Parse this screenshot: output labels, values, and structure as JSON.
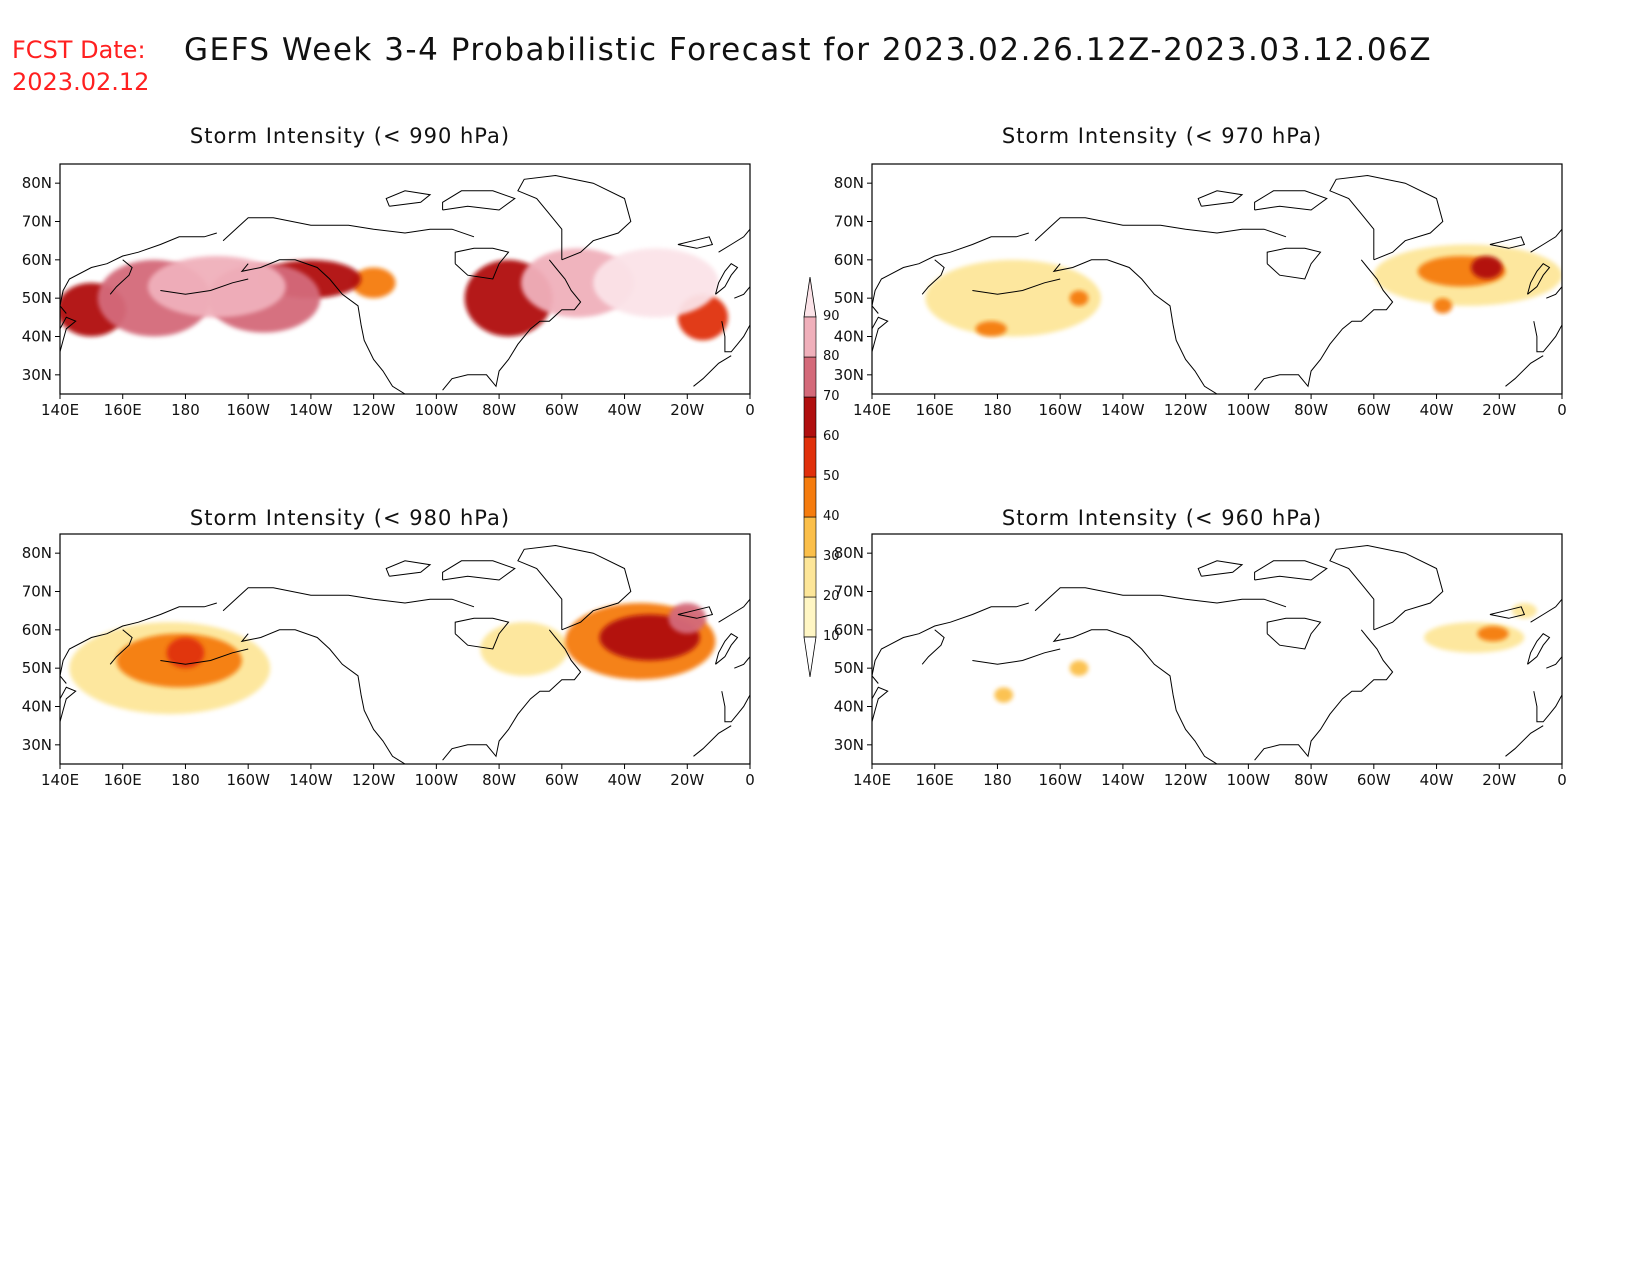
{
  "header": {
    "fcst_label": "FCST Date:",
    "fcst_date": "2023.02.12",
    "title": "GEFS Week 3-4 Probabilistic Forecast for 2023.02.26.12Z-2023.03.12.06Z"
  },
  "map_axes": {
    "lat_labels": [
      "80N",
      "70N",
      "60N",
      "50N",
      "40N",
      "30N"
    ],
    "lat_values": [
      80,
      70,
      60,
      50,
      40,
      30
    ],
    "lon_labels": [
      "140E",
      "160E",
      "180",
      "160W",
      "140W",
      "120W",
      "100W",
      "80W",
      "60W",
      "40W",
      "20W",
      "0"
    ],
    "lon_values": [
      140,
      160,
      180,
      200,
      220,
      240,
      260,
      280,
      300,
      320,
      340,
      360
    ],
    "lon_range": [
      140,
      360
    ],
    "lat_range": [
      25,
      85
    ]
  },
  "colorbar": {
    "levels": [
      "10",
      "20",
      "30",
      "40",
      "50",
      "60",
      "70",
      "80",
      "90"
    ],
    "colors": [
      "#fff6c4",
      "#fde699",
      "#fbbf4a",
      "#f57c0e",
      "#e0300c",
      "#b00f0f",
      "#d46a7a",
      "#f0b0bb",
      "#fbe3e8"
    ]
  },
  "panels": [
    {
      "id": "p990",
      "title": "Storm Intensity (< 990 hPa)",
      "blobs": [
        {
          "lon": 150,
          "lat": 47,
          "rx": 11,
          "ry": 7,
          "level": 5
        },
        {
          "lon": 170,
          "lat": 50,
          "rx": 18,
          "ry": 10,
          "level": 6
        },
        {
          "lon": 190,
          "lat": 53,
          "rx": 22,
          "ry": 8,
          "level": 7
        },
        {
          "lon": 205,
          "lat": 50,
          "rx": 18,
          "ry": 9,
          "level": 6
        },
        {
          "lon": 220,
          "lat": 55,
          "rx": 16,
          "ry": 5,
          "level": 5
        },
        {
          "lon": 240,
          "lat": 54,
          "rx": 7,
          "ry": 4,
          "level": 3
        },
        {
          "lon": 283,
          "lat": 50,
          "rx": 14,
          "ry": 10,
          "level": 5
        },
        {
          "lon": 305,
          "lat": 54,
          "rx": 18,
          "ry": 9,
          "level": 7
        },
        {
          "lon": 330,
          "lat": 54,
          "rx": 20,
          "ry": 9,
          "level": 8
        },
        {
          "lon": 345,
          "lat": 45,
          "rx": 8,
          "ry": 6,
          "level": 4
        }
      ]
    },
    {
      "id": "p970",
      "title": "Storm Intensity (< 970 hPa)",
      "blobs": [
        {
          "lon": 185,
          "lat": 50,
          "rx": 28,
          "ry": 10,
          "level": 1
        },
        {
          "lon": 178,
          "lat": 42,
          "rx": 5,
          "ry": 2,
          "level": 3
        },
        {
          "lon": 206,
          "lat": 50,
          "rx": 3,
          "ry": 2,
          "level": 3
        },
        {
          "lon": 330,
          "lat": 56,
          "rx": 30,
          "ry": 8,
          "level": 1
        },
        {
          "lon": 328,
          "lat": 57,
          "rx": 14,
          "ry": 4,
          "level": 3
        },
        {
          "lon": 336,
          "lat": 58,
          "rx": 5,
          "ry": 3,
          "level": 5
        },
        {
          "lon": 322,
          "lat": 48,
          "rx": 3,
          "ry": 2,
          "level": 3
        }
      ]
    },
    {
      "id": "p980",
      "title": "Storm Intensity (< 980 hPa)",
      "blobs": [
        {
          "lon": 175,
          "lat": 50,
          "rx": 32,
          "ry": 12,
          "level": 1
        },
        {
          "lon": 178,
          "lat": 52,
          "rx": 20,
          "ry": 7,
          "level": 3
        },
        {
          "lon": 180,
          "lat": 54,
          "rx": 6,
          "ry": 4,
          "level": 4
        },
        {
          "lon": 288,
          "lat": 55,
          "rx": 14,
          "ry": 7,
          "level": 1
        },
        {
          "lon": 325,
          "lat": 57,
          "rx": 24,
          "ry": 10,
          "level": 3
        },
        {
          "lon": 328,
          "lat": 58,
          "rx": 16,
          "ry": 6,
          "level": 5
        },
        {
          "lon": 340,
          "lat": 63,
          "rx": 6,
          "ry": 4,
          "level": 6
        }
      ]
    },
    {
      "id": "p960",
      "title": "Storm Intensity (< 960 hPa)",
      "blobs": [
        {
          "lon": 182,
          "lat": 43,
          "rx": 3,
          "ry": 2,
          "level": 2
        },
        {
          "lon": 206,
          "lat": 50,
          "rx": 3,
          "ry": 2,
          "level": 2
        },
        {
          "lon": 332,
          "lat": 58,
          "rx": 16,
          "ry": 4,
          "level": 1
        },
        {
          "lon": 338,
          "lat": 59,
          "rx": 5,
          "ry": 2,
          "level": 3
        },
        {
          "lon": 348,
          "lat": 65,
          "rx": 4,
          "ry": 2,
          "level": 1
        }
      ]
    }
  ]
}
